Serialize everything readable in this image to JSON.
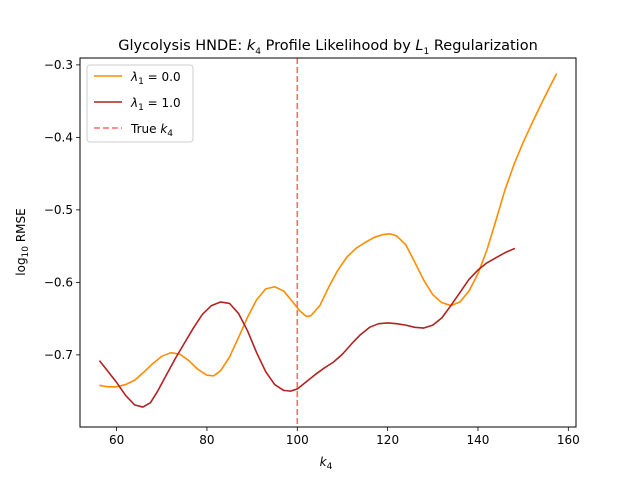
{
  "chart_data": {
    "type": "line",
    "title": {
      "pre": "Glycolysis HNDE: ",
      "k": "k",
      "k_sub": "4",
      "mid": " Profile Likelihood by ",
      "L": "L",
      "L_sub": "1",
      "post": " Regularization"
    },
    "xlabel": {
      "k": "k",
      "k_sub": "4"
    },
    "ylabel": {
      "log": "log",
      "log_sub": "10",
      "rest": " RMSE"
    },
    "xlim": [
      51.9,
      161.7
    ],
    "ylim": [
      -0.7995,
      -0.2905
    ],
    "xticks": [
      60,
      80,
      100,
      120,
      140,
      160
    ],
    "xtick_labels": [
      "60",
      "80",
      "100",
      "120",
      "140",
      "160"
    ],
    "yticks": [
      -0.3,
      -0.4,
      -0.5,
      -0.6,
      -0.7
    ],
    "ytick_labels": [
      "−0.3",
      "−0.4",
      "−0.5",
      "−0.6",
      "−0.7"
    ],
    "grid": false,
    "legend_position": "top-left",
    "true_k4": 100,
    "true_line": {
      "color": "#ff6b6b",
      "dash": "dashed"
    },
    "series": [
      {
        "name_symbol": "λ",
        "name_sub": "1",
        "name_rest": " = 0.0",
        "color": "#ff8c00",
        "points": [
          [
            56.2,
            -0.742
          ],
          [
            58,
            -0.744
          ],
          [
            60,
            -0.744
          ],
          [
            62,
            -0.741
          ],
          [
            64,
            -0.735
          ],
          [
            66,
            -0.724
          ],
          [
            68,
            -0.712
          ],
          [
            70,
            -0.702
          ],
          [
            72,
            -0.697
          ],
          [
            74,
            -0.699
          ],
          [
            76,
            -0.708
          ],
          [
            78,
            -0.72
          ],
          [
            80,
            -0.728
          ],
          [
            81.5,
            -0.729
          ],
          [
            83,
            -0.722
          ],
          [
            85,
            -0.703
          ],
          [
            87,
            -0.676
          ],
          [
            89,
            -0.648
          ],
          [
            91,
            -0.624
          ],
          [
            93,
            -0.609
          ],
          [
            95,
            -0.606
          ],
          [
            97,
            -0.612
          ],
          [
            99,
            -0.627
          ],
          [
            100.5,
            -0.639
          ],
          [
            102,
            -0.647
          ],
          [
            103,
            -0.646
          ],
          [
            105,
            -0.632
          ],
          [
            107,
            -0.606
          ],
          [
            109,
            -0.583
          ],
          [
            111,
            -0.565
          ],
          [
            113,
            -0.553
          ],
          [
            115,
            -0.545
          ],
          [
            117,
            -0.538
          ],
          [
            119,
            -0.534
          ],
          [
            120.5,
            -0.533
          ],
          [
            122,
            -0.536
          ],
          [
            124,
            -0.548
          ],
          [
            126,
            -0.572
          ],
          [
            128,
            -0.597
          ],
          [
            130,
            -0.617
          ],
          [
            132,
            -0.628
          ],
          [
            134,
            -0.632
          ],
          [
            136,
            -0.627
          ],
          [
            138,
            -0.612
          ],
          [
            140,
            -0.588
          ],
          [
            142,
            -0.555
          ],
          [
            144,
            -0.514
          ],
          [
            146,
            -0.472
          ],
          [
            148,
            -0.437
          ],
          [
            150,
            -0.407
          ],
          [
            152,
            -0.38
          ],
          [
            154,
            -0.354
          ],
          [
            156,
            -0.329
          ],
          [
            157.4,
            -0.312
          ]
        ]
      },
      {
        "name_symbol": "λ",
        "name_sub": "1",
        "name_rest": " = 1.0",
        "color": "#b22222",
        "points": [
          [
            56.2,
            -0.708
          ],
          [
            58,
            -0.722
          ],
          [
            60,
            -0.738
          ],
          [
            62,
            -0.756
          ],
          [
            64,
            -0.769
          ],
          [
            65.8,
            -0.772
          ],
          [
            67.5,
            -0.766
          ],
          [
            69,
            -0.751
          ],
          [
            71,
            -0.728
          ],
          [
            73,
            -0.705
          ],
          [
            75,
            -0.684
          ],
          [
            77,
            -0.663
          ],
          [
            79,
            -0.644
          ],
          [
            81,
            -0.632
          ],
          [
            83,
            -0.627
          ],
          [
            85,
            -0.629
          ],
          [
            87,
            -0.643
          ],
          [
            89,
            -0.667
          ],
          [
            91,
            -0.697
          ],
          [
            93,
            -0.723
          ],
          [
            95,
            -0.741
          ],
          [
            97,
            -0.749
          ],
          [
            98.5,
            -0.75
          ],
          [
            100,
            -0.747
          ],
          [
            102,
            -0.737
          ],
          [
            104,
            -0.727
          ],
          [
            106,
            -0.718
          ],
          [
            108,
            -0.71
          ],
          [
            110,
            -0.699
          ],
          [
            112,
            -0.685
          ],
          [
            114,
            -0.672
          ],
          [
            116,
            -0.662
          ],
          [
            118,
            -0.657
          ],
          [
            120,
            -0.656
          ],
          [
            122,
            -0.657
          ],
          [
            124,
            -0.659
          ],
          [
            126,
            -0.662
          ],
          [
            128,
            -0.663
          ],
          [
            130,
            -0.659
          ],
          [
            132,
            -0.649
          ],
          [
            134,
            -0.632
          ],
          [
            136,
            -0.614
          ],
          [
            138,
            -0.596
          ],
          [
            140,
            -0.583
          ],
          [
            142,
            -0.573
          ],
          [
            144,
            -0.566
          ],
          [
            146,
            -0.559
          ],
          [
            148.2,
            -0.553
          ]
        ]
      }
    ],
    "legend_true": {
      "text": "True ",
      "k": "k",
      "k_sub": "4"
    }
  }
}
